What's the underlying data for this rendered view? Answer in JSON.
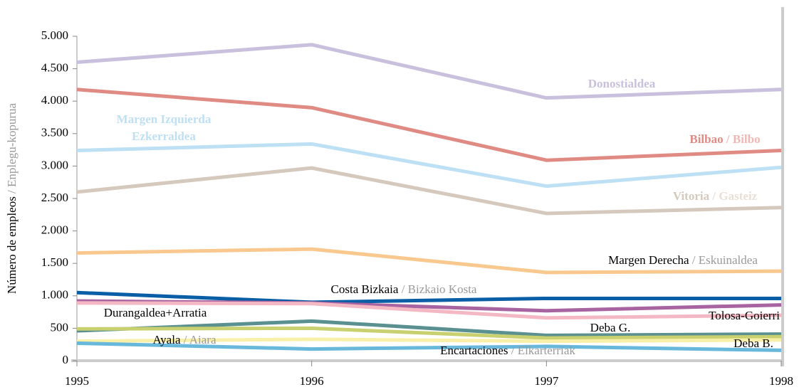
{
  "chart_data": {
    "type": "line",
    "ylabel": "Número de empleos",
    "ylabel_alt": "Enplegu-kopurua",
    "separator": " / ",
    "x": [
      1995,
      1996,
      1997,
      1998
    ],
    "xlim": [
      1995,
      1998
    ],
    "xticks": [
      1995,
      1996,
      1997,
      1998
    ],
    "ylim": [
      0,
      5000
    ],
    "yticks": [
      0,
      500,
      {
        "value": 1000,
        "label": "1.000"
      },
      {
        "value": 1500,
        "label": "1.500"
      },
      {
        "value": 2000,
        "label": "2.000"
      },
      {
        "value": 2500,
        "label": "2.500"
      },
      {
        "value": 3000,
        "label": "3.000"
      },
      {
        "value": 3500,
        "label": "3.500"
      },
      {
        "value": 4000,
        "label": "4.000"
      },
      {
        "value": 4500,
        "label": "4.500"
      },
      {
        "value": 5000,
        "label": "5.000"
      }
    ],
    "series": [
      {
        "name": "Donostialdea",
        "color": "#c8c0dc",
        "label_colors": [
          "#c8c0dc",
          "#c8c0dc"
        ],
        "bold": true,
        "values": [
          4600,
          4870,
          4050,
          4180
        ]
      },
      {
        "name": "Bilbao",
        "alt_name": "Bilbo",
        "color": "#e08a84",
        "label_colors": [
          "#e08a84",
          "#f0b8b4"
        ],
        "bold": true,
        "values": [
          4180,
          3900,
          3090,
          3240
        ]
      },
      {
        "name": "Margen Izquierda",
        "alt_name": "Ezkerraldea",
        "color": "#bde0f5",
        "label_colors": [
          "#bde0f5",
          "#bde0f5"
        ],
        "bold": true,
        "values": [
          3240,
          3340,
          2690,
          2980
        ]
      },
      {
        "name": "Vitoria",
        "alt_name": "Gasteiz",
        "color": "#d5c8bc",
        "label_colors": [
          "#d5c8bc",
          "#e8dfd6"
        ],
        "bold": true,
        "values": [
          2600,
          2970,
          2270,
          2360
        ]
      },
      {
        "name": "Margen Derecha",
        "alt_name": "Eskuinaldea",
        "color": "#f8c88e",
        "label_colors": [
          "#000000",
          "#999999"
        ],
        "bold": false,
        "values": [
          1660,
          1720,
          1360,
          1380
        ]
      },
      {
        "name": "Costa Bizkaia",
        "alt_name": "Bizkaio Kosta",
        "color": "#0a5ea6",
        "label_colors": [
          "#000000",
          "#999999"
        ],
        "bold": false,
        "values": [
          1050,
          900,
          960,
          960
        ]
      },
      {
        "name": "Durangaldea+Arratia",
        "color": "#a864a0",
        "label_colors": [
          "#000000",
          "#000000"
        ],
        "bold": false,
        "values": [
          920,
          890,
          770,
          860
        ]
      },
      {
        "name": "Tolosa-Goierri",
        "color": "#f4b8c4",
        "label_colors": [
          "#000000",
          "#000000"
        ],
        "bold": false,
        "values": [
          890,
          880,
          660,
          700
        ]
      },
      {
        "name": "Deba G.",
        "color": "#5a9090",
        "label_colors": [
          "#000000",
          "#000000"
        ],
        "bold": false,
        "values": [
          460,
          610,
          390,
          410
        ]
      },
      {
        "name": "Deba B.",
        "color": "#c8d070",
        "label_colors": [
          "#000000",
          "#000000"
        ],
        "bold": false,
        "values": [
          490,
          500,
          350,
          370
        ]
      },
      {
        "name": "Ayala",
        "alt_name": "Aiara",
        "color": "#f8f0a8",
        "label_colors": [
          "#000000",
          "#999999"
        ],
        "bold": false,
        "values": [
          300,
          330,
          300,
          320
        ]
      },
      {
        "name": "Encartaciones",
        "alt_name": "Elkarterriak",
        "color": "#68b8dc",
        "label_colors": [
          "#000000",
          "#999999"
        ],
        "bold": false,
        "values": [
          270,
          180,
          220,
          160
        ]
      }
    ]
  }
}
